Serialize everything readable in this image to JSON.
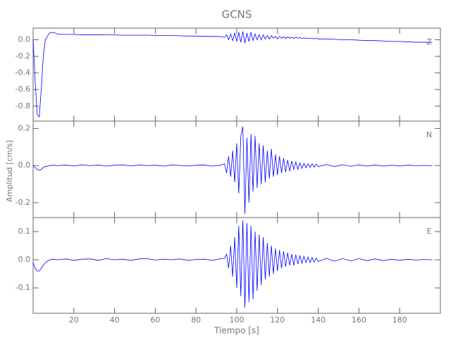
{
  "chart_data": [
    {
      "type": "line",
      "title": "GCNS",
      "x": [
        0,
        1,
        2,
        3,
        4,
        5,
        6,
        8,
        10,
        12,
        16,
        20,
        24,
        28,
        32,
        36,
        40,
        44,
        48,
        52,
        56,
        60,
        64,
        68,
        72,
        76,
        80,
        84,
        88,
        92,
        94,
        95,
        96,
        97,
        98,
        99,
        100,
        101,
        102,
        103,
        104,
        105,
        106,
        107,
        108,
        109,
        110,
        111,
        112,
        113,
        114,
        115,
        116,
        117,
        118,
        119,
        120,
        121,
        122,
        123,
        124,
        125,
        126,
        127,
        128,
        129,
        130,
        131,
        132,
        133,
        134,
        135,
        136,
        137,
        138,
        139,
        140,
        144,
        148,
        152,
        156,
        160,
        164,
        168,
        172,
        176,
        180,
        184,
        188,
        192,
        196
      ],
      "series": [
        {
          "name": "Z",
          "color": "#0000ff",
          "values": [
            0.0,
            -0.5,
            -0.9,
            -0.93,
            -0.6,
            -0.2,
            0.0,
            0.08,
            0.09,
            0.07,
            0.065,
            0.065,
            0.06,
            0.06,
            0.06,
            0.058,
            0.058,
            0.055,
            0.055,
            0.055,
            0.055,
            0.052,
            0.05,
            0.05,
            0.048,
            0.045,
            0.045,
            0.042,
            0.04,
            0.04,
            0.03,
            0.06,
            0.0,
            0.07,
            -0.01,
            0.08,
            -0.02,
            0.09,
            -0.03,
            0.1,
            -0.04,
            0.08,
            -0.02,
            0.09,
            -0.01,
            0.07,
            0.0,
            0.06,
            0.0,
            0.06,
            0.01,
            0.05,
            0.01,
            0.05,
            0.02,
            0.04,
            0.01,
            0.04,
            0.02,
            0.035,
            0.015,
            0.035,
            0.02,
            0.03,
            0.015,
            0.03,
            0.02,
            0.025,
            0.015,
            0.025,
            0.015,
            0.02,
            0.015,
            0.02,
            0.01,
            0.02,
            0.01,
            0.01,
            0.005,
            0.0,
            0.0,
            -0.005,
            -0.01,
            -0.01,
            -0.015,
            -0.02,
            -0.02,
            -0.025,
            -0.03,
            -0.03,
            -0.03
          ]
        }
      ],
      "xlim": [
        0,
        200
      ],
      "ylim": [
        -0.98,
        0.14
      ],
      "yticks": [
        {
          "value": -0.8,
          "label": "-0.8"
        },
        {
          "value": -0.6,
          "label": "-0.6"
        },
        {
          "value": -0.4,
          "label": "-0.4"
        },
        {
          "value": -0.2,
          "label": "-0.2"
        },
        {
          "value": 0,
          "label": "0.0"
        }
      ]
    },
    {
      "type": "line",
      "y_label": "Amplitud [cm/s]",
      "x": [
        0,
        1,
        2,
        3,
        4,
        5,
        6,
        8,
        10,
        12,
        16,
        20,
        24,
        28,
        32,
        36,
        40,
        44,
        48,
        52,
        56,
        60,
        64,
        68,
        72,
        76,
        80,
        84,
        88,
        92,
        94,
        95,
        96,
        97,
        98,
        99,
        100,
        101,
        102,
        103,
        104,
        105,
        106,
        107,
        108,
        109,
        110,
        111,
        112,
        113,
        114,
        115,
        116,
        117,
        118,
        119,
        120,
        121,
        122,
        123,
        124,
        125,
        126,
        127,
        128,
        129,
        130,
        131,
        132,
        133,
        134,
        135,
        136,
        137,
        138,
        139,
        140,
        144,
        148,
        152,
        156,
        160,
        164,
        168,
        172,
        176,
        180,
        184,
        188,
        192,
        196
      ],
      "series": [
        {
          "name": "N",
          "color": "#0000ff",
          "values": [
            0,
            -0.01,
            -0.02,
            -0.025,
            -0.02,
            -0.01,
            -0.005,
            0.0,
            0.002,
            0.0,
            0.003,
            -0.002,
            0.004,
            0,
            0.003,
            -0.003,
            0.002,
            0.004,
            -0.002,
            0.003,
            0,
            0.002,
            -0.003,
            0.003,
            0.001,
            -0.002,
            0.002,
            0.003,
            -0.003,
            0.002,
            0.01,
            -0.04,
            0.05,
            -0.06,
            0.08,
            -0.09,
            0.12,
            -0.15,
            0.16,
            0.21,
            -0.26,
            0.15,
            -0.2,
            0.17,
            -0.14,
            0.16,
            -0.12,
            0.12,
            -0.1,
            0.11,
            -0.09,
            0.08,
            -0.07,
            0.09,
            -0.06,
            0.06,
            -0.05,
            0.05,
            -0.04,
            0.04,
            -0.035,
            0.03,
            -0.03,
            0.025,
            -0.02,
            0.02,
            -0.02,
            0.015,
            -0.015,
            0.012,
            -0.012,
            0.01,
            -0.01,
            0.01,
            -0.008,
            0.008,
            -0.006,
            0.006,
            -0.005,
            0.005,
            -0.004,
            0.004,
            -0.003,
            0.003,
            -0.003,
            0.002,
            -0.002,
            0.002,
            0,
            0.001,
            0
          ]
        }
      ],
      "xlim": [
        0,
        200
      ],
      "ylim": [
        -0.28,
        0.24
      ],
      "yticks": [
        {
          "value": -0.2,
          "label": "-0.2"
        },
        {
          "value": 0,
          "label": "0.0"
        },
        0.2
      ]
    },
    {
      "type": "line",
      "x_label": "Tiempo [s]",
      "x": [
        0,
        1,
        2,
        3,
        4,
        5,
        6,
        8,
        10,
        12,
        16,
        20,
        24,
        28,
        32,
        36,
        40,
        44,
        48,
        52,
        56,
        60,
        64,
        68,
        72,
        76,
        80,
        84,
        88,
        92,
        94,
        95,
        96,
        97,
        98,
        99,
        100,
        101,
        102,
        103,
        104,
        105,
        106,
        107,
        108,
        109,
        110,
        111,
        112,
        113,
        114,
        115,
        116,
        117,
        118,
        119,
        120,
        121,
        122,
        123,
        124,
        125,
        126,
        127,
        128,
        129,
        130,
        131,
        132,
        133,
        134,
        135,
        136,
        137,
        138,
        139,
        140,
        144,
        148,
        152,
        156,
        160,
        164,
        168,
        172,
        176,
        180,
        184,
        188,
        192,
        196
      ],
      "series": [
        {
          "name": "E",
          "color": "#0000ff",
          "values": [
            -0.01,
            -0.03,
            -0.04,
            -0.04,
            -0.03,
            -0.02,
            -0.01,
            0.0,
            0.002,
            0.0,
            0.003,
            -0.002,
            0.002,
            0.003,
            -0.002,
            0.004,
            0,
            0.002,
            -0.002,
            0.003,
            0.004,
            -0.001,
            0.002,
            0,
            0.003,
            -0.002,
            0.001,
            0.002,
            -0.002,
            0.004,
            0.005,
            0.02,
            -0.03,
            0.05,
            -0.06,
            0.08,
            -0.1,
            0.12,
            -0.13,
            0.14,
            -0.17,
            0.13,
            -0.15,
            0.12,
            -0.14,
            0.1,
            -0.11,
            0.09,
            -0.09,
            0.08,
            -0.07,
            0.06,
            -0.06,
            0.05,
            -0.05,
            0.04,
            -0.04,
            0.035,
            -0.03,
            0.03,
            -0.025,
            0.025,
            -0.02,
            0.02,
            -0.02,
            0.018,
            -0.015,
            0.015,
            -0.012,
            0.012,
            -0.01,
            0.01,
            -0.01,
            0.008,
            -0.008,
            0.006,
            -0.006,
            0.005,
            -0.005,
            0.004,
            -0.004,
            0.004,
            -0.003,
            0.003,
            -0.003,
            0.002,
            -0.002,
            0.002,
            -0.001,
            0.001,
            0
          ]
        }
      ],
      "xlim": [
        0,
        200
      ],
      "ylim": [
        -0.19,
        0.15
      ],
      "yticks": [
        {
          "value": -0.1,
          "label": "-0.1"
        },
        {
          "value": 0,
          "label": "0.0"
        },
        0.1
      ],
      "xticks": [
        20,
        40,
        60,
        80,
        100,
        120,
        140,
        160,
        180
      ]
    }
  ]
}
